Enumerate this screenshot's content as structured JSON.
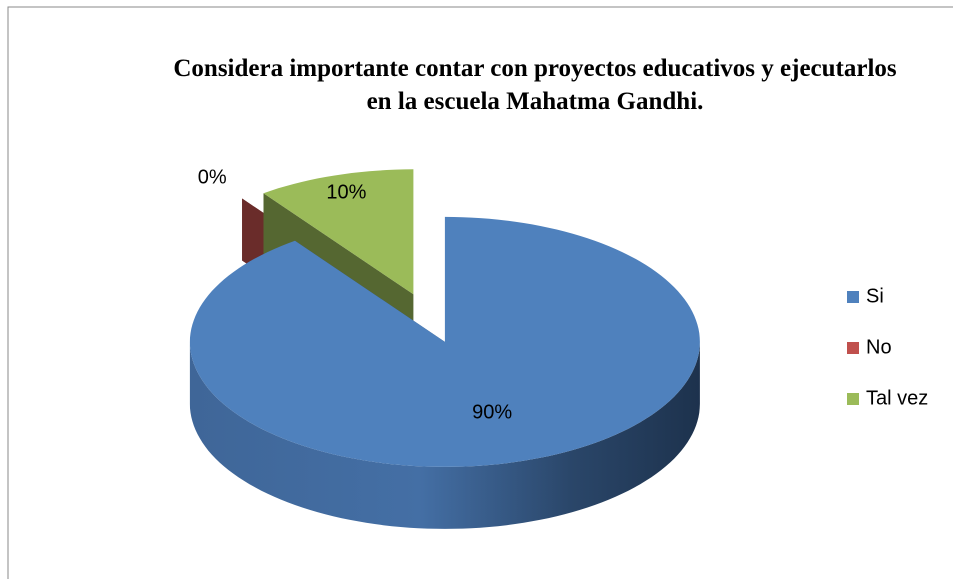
{
  "chart_data": {
    "type": "pie3d",
    "title": "Considera importante contar con proyectos educativos y ejecutarlos en la escuela Mahatma Gandhi.",
    "categories": [
      "Si",
      "No",
      "Tal vez"
    ],
    "values": [
      90,
      0,
      10
    ],
    "value_labels": [
      "90%",
      "0%",
      "10%"
    ],
    "colors": [
      "#4f81bd",
      "#c0504d",
      "#9bbb59"
    ],
    "legend": "right"
  }
}
